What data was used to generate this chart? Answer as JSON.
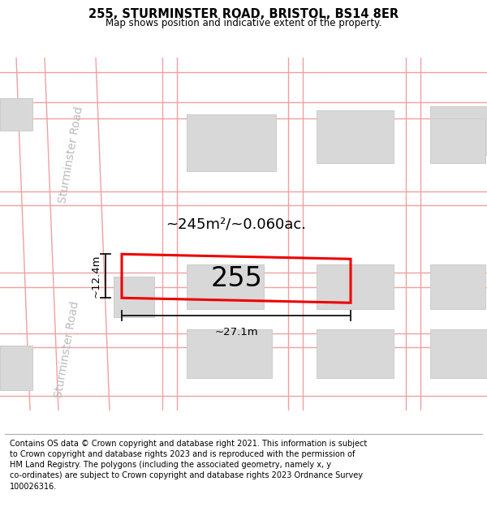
{
  "title": "255, STURMINSTER ROAD, BRISTOL, BS14 8ER",
  "subtitle": "Map shows position and indicative extent of the property.",
  "footer": "Contains OS data © Crown copyright and database right 2021. This information is subject\nto Crown copyright and database rights 2023 and is reproduced with the permission of\nHM Land Registry. The polygons (including the associated geometry, namely x, y\nco-ordinates) are subject to Crown copyright and database rights 2023 Ordnance Survey\n100026316.",
  "area_label": "~245m²/~0.060ac.",
  "width_label": "~27.1m",
  "height_label": "~12.4m",
  "plot_number": "255",
  "bg_color": "#ffffff",
  "map_bg": "#f7f7f7",
  "road_line_color": "#f0a0a0",
  "building_fill": "#d8d8d8",
  "building_edge": "#cccccc",
  "plot_rect_color": "#ee0000",
  "dim_line_color": "#111111",
  "road_label_color": "#bbbbbb",
  "title_fontsize": 10.5,
  "subtitle_fontsize": 8.5,
  "footer_fontsize": 7.0,
  "area_label_fontsize": 13,
  "plot_num_fontsize": 24,
  "dim_fontsize": 9.5,
  "road_label_fontsize": 10
}
